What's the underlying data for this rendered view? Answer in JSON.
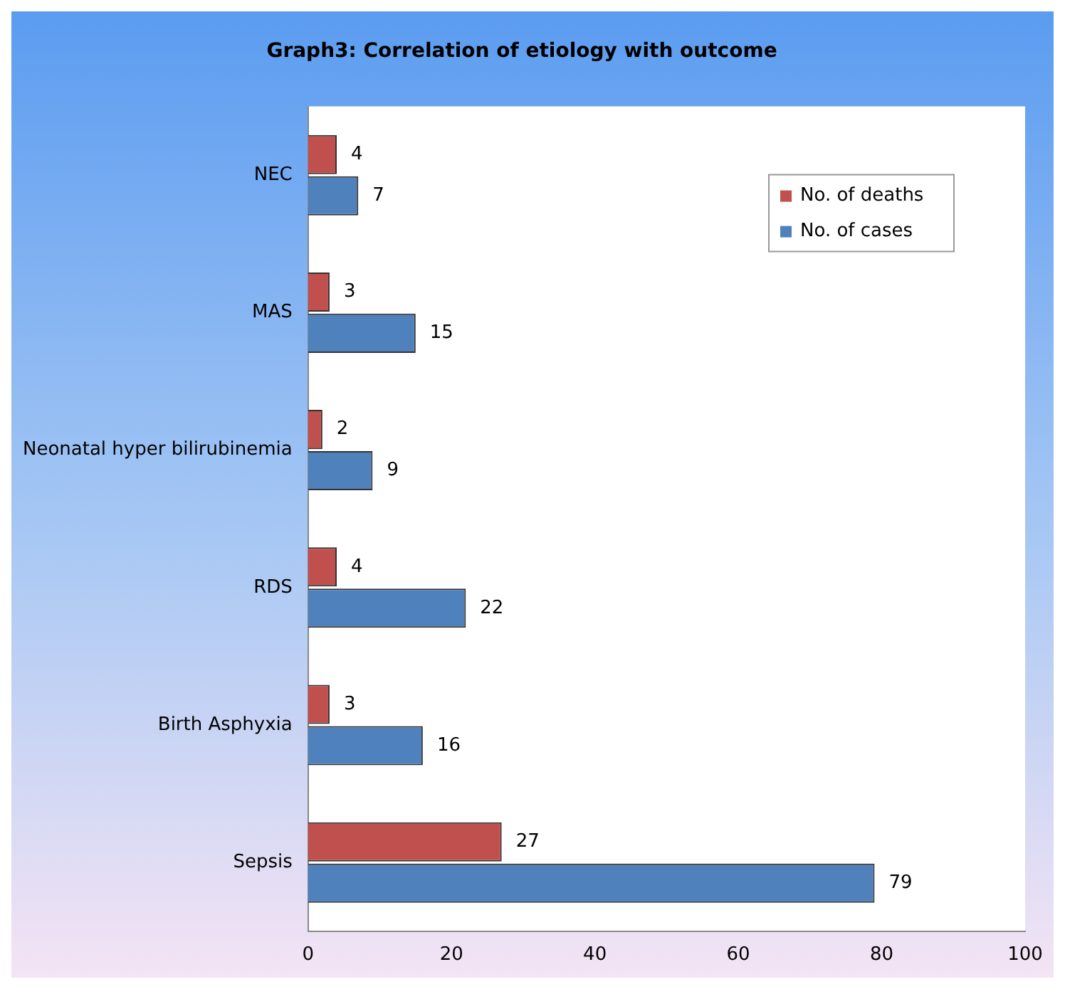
{
  "chart_data": {
    "type": "bar",
    "title": "Graph3: Correlation of etiology with outcome",
    "orientation": "horizontal",
    "categories": [
      "NEC",
      "MAS",
      "Neonatal hyper bilirubinemia",
      "RDS",
      "Birth Asphyxia",
      "Sepsis"
    ],
    "series": [
      {
        "name": "No. of deaths",
        "color": "#c0504d",
        "values": [
          4,
          3,
          2,
          4,
          3,
          27
        ]
      },
      {
        "name": "No. of cases",
        "color": "#4f81bd",
        "values": [
          7,
          15,
          9,
          22,
          16,
          79
        ]
      }
    ],
    "xlim": [
      0,
      100
    ],
    "xticks": [
      0,
      20,
      40,
      60,
      80,
      100
    ],
    "grid": false,
    "legend": "top right",
    "data_labels": true
  }
}
